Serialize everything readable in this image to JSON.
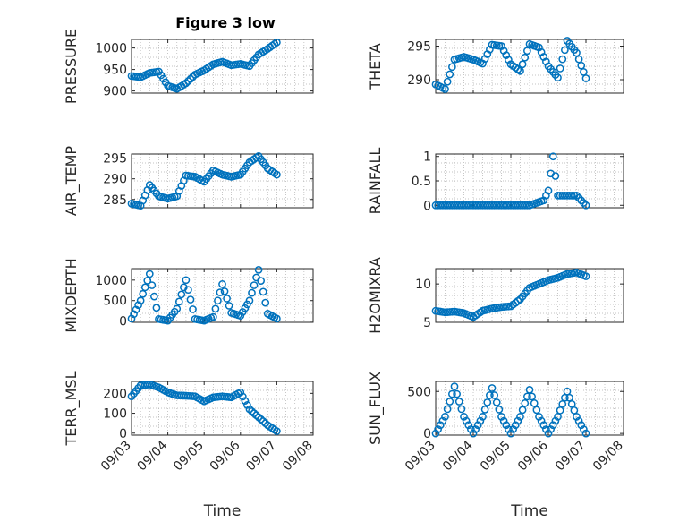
{
  "title": "Figure 3 low",
  "colors": {
    "marker": "#0072BD",
    "axis": "#262626",
    "grid": "#b0b0b0"
  },
  "chart_data": [
    {
      "type": "scatter",
      "ylabel": "PRESSURE",
      "yticks": [
        "900",
        "950",
        "1000"
      ],
      "ylim": [
        895,
        1020
      ],
      "grid": true,
      "x": [
        "09/03 00:00",
        "09/03 06:00",
        "09/03 12:00",
        "09/03 18:00",
        "09/04 00:00",
        "09/04 06:00",
        "09/04 12:00",
        "09/04 18:00",
        "09/05 00:00",
        "09/05 06:00",
        "09/05 12:00",
        "09/05 18:00",
        "09/06 00:00",
        "09/06 06:00",
        "09/06 12:00",
        "09/06 18:00",
        "09/07 00:00"
      ],
      "y": [
        935,
        932,
        942,
        945,
        912,
        905,
        918,
        938,
        948,
        962,
        968,
        960,
        963,
        958,
        985,
        998,
        1013
      ]
    },
    {
      "type": "scatter",
      "ylabel": "THETA",
      "yticks": [
        "290",
        "295"
      ],
      "ylim": [
        288,
        296
      ],
      "grid": true,
      "x": [
        "09/03 00:00",
        "09/03 06:00",
        "09/03 12:00",
        "09/03 18:00",
        "09/04 00:00",
        "09/04 06:00",
        "09/04 12:00",
        "09/04 18:00",
        "09/05 00:00",
        "09/05 06:00",
        "09/05 12:00",
        "09/05 18:00",
        "09/06 00:00",
        "09/06 06:00",
        "09/06 12:00",
        "09/06 18:00",
        "09/07 00:00"
      ],
      "y": [
        289.3,
        288.6,
        293.0,
        293.4,
        293.0,
        292.4,
        295.2,
        295.0,
        292.3,
        291.3,
        295.3,
        294.8,
        292.0,
        290.3,
        295.8,
        294.0,
        290.2
      ]
    },
    {
      "type": "scatter",
      "ylabel": "AIR_TEMP",
      "yticks": [
        "285",
        "290",
        "295"
      ],
      "ylim": [
        283,
        296
      ],
      "grid": true,
      "x": [
        "09/03 00:00",
        "09/03 06:00",
        "09/03 12:00",
        "09/03 18:00",
        "09/04 00:00",
        "09/04 06:00",
        "09/04 12:00",
        "09/04 18:00",
        "09/05 00:00",
        "09/05 06:00",
        "09/05 12:00",
        "09/05 18:00",
        "09/06 00:00",
        "09/06 06:00",
        "09/06 12:00",
        "09/06 18:00",
        "09/07 00:00"
      ],
      "y": [
        284.0,
        283.5,
        288.5,
        285.8,
        285.2,
        285.8,
        290.8,
        290.5,
        289.3,
        292.0,
        291.0,
        290.5,
        291.0,
        294.0,
        295.5,
        292.5,
        291.0
      ]
    },
    {
      "type": "scatter",
      "ylabel": "RAINFALL",
      "yticks": [
        "0",
        "0.5",
        "1"
      ],
      "ylim": [
        -0.05,
        1.05
      ],
      "grid": true,
      "x": [
        "09/03 00:00",
        "09/03 12:00",
        "09/04 00:00",
        "09/04 12:00",
        "09/05 00:00",
        "09/05 12:00",
        "09/05 21:00",
        "09/06 00:00",
        "09/06 03:00",
        "09/06 06:00",
        "09/06 12:00",
        "09/06 18:00",
        "09/07 00:00"
      ],
      "y": [
        0,
        0,
        0,
        0,
        0,
        0,
        0.1,
        0.3,
        1.0,
        0.2,
        0.2,
        0.2,
        0
      ]
    },
    {
      "type": "scatter",
      "ylabel": "MIXDEPTH",
      "yticks": [
        "0",
        "500",
        "1000"
      ],
      "ylim": [
        -30,
        1280
      ],
      "grid": true,
      "x": [
        "09/03 00:00",
        "09/03 06:00",
        "09/03 12:00",
        "09/03 18:00",
        "09/04 00:00",
        "09/04 06:00",
        "09/04 12:00",
        "09/04 18:00",
        "09/05 00:00",
        "09/05 06:00",
        "09/05 12:00",
        "09/05 18:00",
        "09/06 00:00",
        "09/06 06:00",
        "09/06 12:00",
        "09/06 18:00",
        "09/07 00:00"
      ],
      "y": [
        60,
        500,
        1150,
        50,
        10,
        300,
        1000,
        50,
        10,
        100,
        900,
        200,
        130,
        500,
        1250,
        180,
        60
      ]
    },
    {
      "type": "scatter",
      "ylabel": "H2OMIXRA",
      "yticks": [
        "5",
        "10"
      ],
      "ylim": [
        5,
        12
      ],
      "grid": true,
      "x": [
        "09/03 00:00",
        "09/03 06:00",
        "09/03 12:00",
        "09/03 18:00",
        "09/04 00:00",
        "09/04 06:00",
        "09/04 12:00",
        "09/04 18:00",
        "09/05 00:00",
        "09/05 06:00",
        "09/05 12:00",
        "09/05 18:00",
        "09/06 00:00",
        "09/06 06:00",
        "09/06 12:00",
        "09/06 18:00",
        "09/07 00:00"
      ],
      "y": [
        6.5,
        6.3,
        6.4,
        6.2,
        5.7,
        6.5,
        6.8,
        7.0,
        7.1,
        8.0,
        9.5,
        10.0,
        10.5,
        10.8,
        11.3,
        11.5,
        11.0
      ]
    },
    {
      "type": "scatter",
      "ylabel": "TERR_MSL",
      "yticks": [
        "0",
        "100",
        "200"
      ],
      "ylim": [
        -10,
        260
      ],
      "grid": true,
      "x": [
        "09/03 00:00",
        "09/03 06:00",
        "09/03 12:00",
        "09/03 18:00",
        "09/04 00:00",
        "09/04 06:00",
        "09/04 12:00",
        "09/04 18:00",
        "09/05 00:00",
        "09/05 06:00",
        "09/05 12:00",
        "09/05 18:00",
        "09/06 00:00",
        "09/06 06:00",
        "09/06 12:00",
        "09/06 18:00",
        "09/07 00:00"
      ],
      "y": [
        185,
        240,
        245,
        230,
        205,
        190,
        188,
        185,
        160,
        180,
        185,
        180,
        205,
        120,
        80,
        40,
        10
      ]
    },
    {
      "type": "scatter",
      "ylabel": "SUN_FLUX",
      "yticks": [
        "0",
        "500"
      ],
      "ylim": [
        -20,
        620
      ],
      "grid": true,
      "x": [
        "09/03 00:00",
        "09/03 06:00",
        "09/03 12:00",
        "09/03 18:00",
        "09/04 00:00",
        "09/04 06:00",
        "09/04 12:00",
        "09/04 18:00",
        "09/05 00:00",
        "09/05 06:00",
        "09/05 12:00",
        "09/05 18:00",
        "09/06 00:00",
        "09/06 06:00",
        "09/06 12:00",
        "09/06 18:00",
        "09/07 00:00"
      ],
      "y": [
        0,
        200,
        560,
        200,
        0,
        200,
        540,
        200,
        0,
        200,
        520,
        200,
        0,
        200,
        500,
        200,
        0
      ]
    }
  ],
  "xaxis": {
    "label": "Time",
    "ticks": [
      "09/03",
      "09/04",
      "09/05",
      "09/06",
      "09/07",
      "09/08"
    ],
    "tick_dates": [
      "09/03 00:00",
      "09/04 00:00",
      "09/05 00:00",
      "09/06 00:00",
      "09/07 00:00",
      "09/08 00:00"
    ]
  }
}
